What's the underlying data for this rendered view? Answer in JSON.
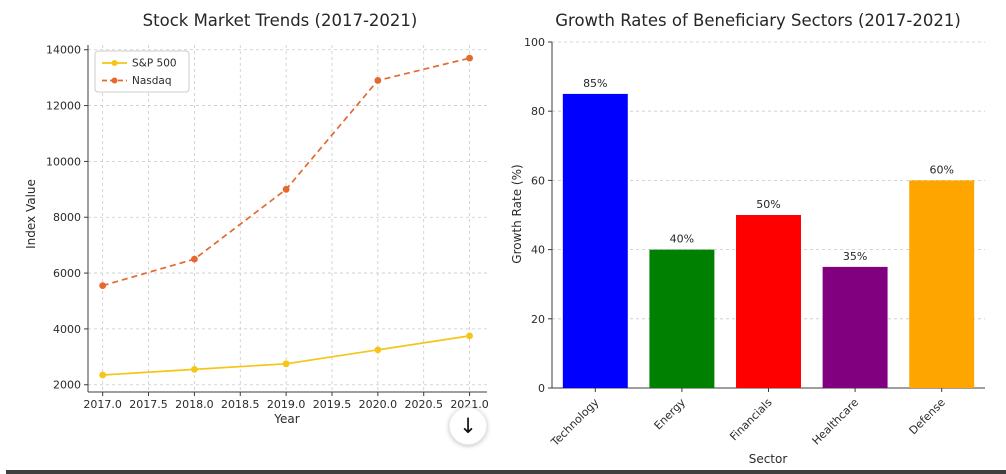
{
  "figure": {
    "background": "#ffffff"
  },
  "download_button": {
    "icon": "↓"
  },
  "chart_data": [
    {
      "type": "line",
      "title": "Stock Market Trends (2017-2021)",
      "xlabel": "Year",
      "ylabel": "Index Value",
      "x": [
        2017,
        2018,
        2019,
        2020,
        2021
      ],
      "series": [
        {
          "name": "S&P 500",
          "color": "#f5c518",
          "linestyle": "solid",
          "marker": "circle",
          "values": [
            2350,
            2550,
            2750,
            3250,
            3750
          ]
        },
        {
          "name": "Nasdaq",
          "color": "#e5692e",
          "linestyle": "dashed",
          "marker": "circle",
          "values": [
            5550,
            6500,
            9000,
            12900,
            13700
          ]
        }
      ],
      "x_ticks": [
        2017.0,
        2017.5,
        2018.0,
        2018.5,
        2019.0,
        2019.5,
        2020.0,
        2020.5,
        2021.0
      ],
      "x_tick_labels": [
        "2017.0",
        "2017.5",
        "2018.0",
        "2018.5",
        "2019.0",
        "2019.5",
        "2020.0",
        "2020.5",
        "2021.0"
      ],
      "y_ticks": [
        2000,
        4000,
        6000,
        8000,
        10000,
        12000,
        14000
      ],
      "y_tick_labels": [
        "2000",
        "4000",
        "6000",
        "8000",
        "10000",
        "12000",
        "14000"
      ],
      "xlim": [
        2016.84,
        2021.19
      ],
      "ylim": [
        1740,
        14170
      ],
      "grid": true,
      "legend_position": "upper left"
    },
    {
      "type": "bar",
      "title": "Growth Rates of Beneficiary Sectors (2017-2021)",
      "xlabel": "Sector",
      "ylabel": "Growth Rate (%)",
      "categories": [
        "Technology",
        "Energy",
        "Financials",
        "Healthcare",
        "Defense"
      ],
      "values": [
        85,
        40,
        50,
        35,
        60
      ],
      "value_labels": [
        "85%",
        "40%",
        "50%",
        "35%",
        "60%"
      ],
      "bar_colors": [
        "#0000ff",
        "#008000",
        "#ff0000",
        "#800080",
        "#ffa500"
      ],
      "y_ticks": [
        0,
        20,
        40,
        60,
        80,
        100
      ],
      "y_tick_labels": [
        "0",
        "20",
        "40",
        "60",
        "80",
        "100"
      ],
      "ylim": [
        0,
        100
      ],
      "grid": true,
      "legend_position": "none"
    }
  ]
}
